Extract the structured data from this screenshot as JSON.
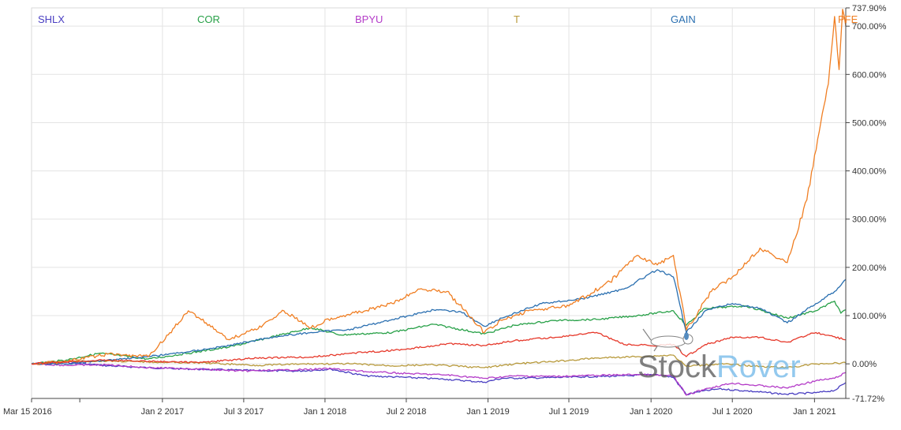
{
  "chart_data": {
    "type": "line",
    "title": "",
    "xlabel": "",
    "ylabel": "",
    "ylim": [
      -71.72,
      737.9
    ],
    "x_range": [
      "2016-03-15",
      "2021-03-12"
    ],
    "grid": true,
    "legend_position": "top",
    "y_ticks": [
      {
        "value": 737.9,
        "label": "737.90%"
      },
      {
        "value": 700,
        "label": "700.00%"
      },
      {
        "value": 600,
        "label": "600.00%"
      },
      {
        "value": 500,
        "label": "500.00%"
      },
      {
        "value": 400,
        "label": "400.00%"
      },
      {
        "value": 300,
        "label": "300.00%"
      },
      {
        "value": 200,
        "label": "200.00%"
      },
      {
        "value": 100,
        "label": "100.00%"
      },
      {
        "value": 0,
        "label": "0.00%"
      },
      {
        "value": -71.72,
        "label": "-71.72%"
      }
    ],
    "x_ticks": [
      {
        "date": "2016-03-15",
        "label": "Mar 15 2016"
      },
      {
        "date": "2017-01-02",
        "label": "Jan 2 2017"
      },
      {
        "date": "2017-07-03",
        "label": "Jul 3 2017"
      },
      {
        "date": "2018-01-01",
        "label": "Jan 1 2018"
      },
      {
        "date": "2018-07-02",
        "label": "Jul 2 2018"
      },
      {
        "date": "2019-01-01",
        "label": "Jan 1 2019"
      },
      {
        "date": "2019-07-01",
        "label": "Jul 1 2019"
      },
      {
        "date": "2020-01-01",
        "label": "Jan 1 2020"
      },
      {
        "date": "2020-07-01",
        "label": "Jul 1 2020"
      },
      {
        "date": "2021-01-01",
        "label": "Jan 1 2021"
      }
    ],
    "series": [
      {
        "name": "SHLX",
        "color": "#4a3fc2",
        "points": [
          [
            "2016-03-15",
            0
          ],
          [
            "2016-06-01",
            3
          ],
          [
            "2016-09-01",
            -4
          ],
          [
            "2016-12-01",
            -8
          ],
          [
            "2017-02-01",
            -10
          ],
          [
            "2017-05-01",
            -12
          ],
          [
            "2017-08-01",
            -14
          ],
          [
            "2017-11-01",
            -15
          ],
          [
            "2018-01-15",
            -11
          ],
          [
            "2018-04-01",
            -25
          ],
          [
            "2018-07-01",
            -28
          ],
          [
            "2018-10-01",
            -32
          ],
          [
            "2018-12-24",
            -38
          ],
          [
            "2019-02-01",
            -30
          ],
          [
            "2019-05-01",
            -29
          ],
          [
            "2019-08-01",
            -27
          ],
          [
            "2019-11-01",
            -25
          ],
          [
            "2020-01-15",
            -22
          ],
          [
            "2020-02-20",
            -28
          ],
          [
            "2020-03-20",
            -64
          ],
          [
            "2020-04-15",
            -58
          ],
          [
            "2020-06-01",
            -52
          ],
          [
            "2020-08-01",
            -56
          ],
          [
            "2020-10-30",
            -63
          ],
          [
            "2021-01-04",
            -60
          ],
          [
            "2021-02-15",
            -55
          ],
          [
            "2021-03-12",
            -39
          ]
        ]
      },
      {
        "name": "COR",
        "color": "#27a047",
        "points": [
          [
            "2016-03-15",
            0
          ],
          [
            "2016-06-01",
            8
          ],
          [
            "2016-08-15",
            22
          ],
          [
            "2016-12-01",
            10
          ],
          [
            "2017-03-01",
            22
          ],
          [
            "2017-06-01",
            35
          ],
          [
            "2017-09-01",
            55
          ],
          [
            "2017-12-01",
            75
          ],
          [
            "2018-02-05",
            60
          ],
          [
            "2018-06-01",
            65
          ],
          [
            "2018-09-01",
            82
          ],
          [
            "2018-12-24",
            62
          ],
          [
            "2019-03-01",
            80
          ],
          [
            "2019-06-01",
            90
          ],
          [
            "2019-09-01",
            92
          ],
          [
            "2019-12-01",
            100
          ],
          [
            "2020-02-20",
            110
          ],
          [
            "2020-03-20",
            80
          ],
          [
            "2020-05-01",
            115
          ],
          [
            "2020-08-01",
            120
          ],
          [
            "2020-11-01",
            95
          ],
          [
            "2021-01-04",
            110
          ],
          [
            "2021-02-15",
            130
          ],
          [
            "2021-03-01",
            105
          ],
          [
            "2021-03-12",
            112
          ]
        ]
      },
      {
        "name": "BPYU",
        "color": "#b43cc8",
        "points": [
          [
            "2016-03-15",
            0
          ],
          [
            "2016-06-01",
            -3
          ],
          [
            "2016-09-01",
            -2
          ],
          [
            "2016-12-01",
            -8
          ],
          [
            "2017-03-01",
            -10
          ],
          [
            "2017-07-01",
            -15
          ],
          [
            "2017-10-01",
            -13
          ],
          [
            "2018-01-15",
            -10
          ],
          [
            "2018-04-01",
            -16
          ],
          [
            "2018-07-01",
            -20
          ],
          [
            "2018-10-01",
            -23
          ],
          [
            "2018-12-24",
            -30
          ],
          [
            "2019-03-01",
            -25
          ],
          [
            "2019-06-01",
            -26
          ],
          [
            "2019-09-01",
            -24
          ],
          [
            "2019-12-01",
            -22
          ],
          [
            "2020-02-20",
            -25
          ],
          [
            "2020-03-20",
            -65
          ],
          [
            "2020-05-01",
            -52
          ],
          [
            "2020-07-01",
            -40
          ],
          [
            "2020-10-30",
            -50
          ],
          [
            "2021-01-04",
            -35
          ],
          [
            "2021-02-15",
            -30
          ],
          [
            "2021-03-12",
            -18
          ]
        ]
      },
      {
        "name": "T",
        "color": "#b89a3c",
        "points": [
          [
            "2016-03-15",
            0
          ],
          [
            "2016-06-01",
            5
          ],
          [
            "2016-09-01",
            6
          ],
          [
            "2016-12-01",
            4
          ],
          [
            "2017-04-01",
            2
          ],
          [
            "2017-08-01",
            -3
          ],
          [
            "2017-12-01",
            0
          ],
          [
            "2018-03-01",
            0
          ],
          [
            "2018-06-01",
            -4
          ],
          [
            "2018-09-01",
            -2
          ],
          [
            "2018-12-24",
            -8
          ],
          [
            "2019-03-01",
            0
          ],
          [
            "2019-06-01",
            5
          ],
          [
            "2019-09-01",
            12
          ],
          [
            "2019-12-01",
            15
          ],
          [
            "2020-02-20",
            18
          ],
          [
            "2020-03-20",
            -5
          ],
          [
            "2020-06-01",
            0
          ],
          [
            "2020-09-01",
            -5
          ],
          [
            "2020-11-01",
            -8
          ],
          [
            "2021-01-04",
            0
          ],
          [
            "2021-03-12",
            2
          ]
        ]
      },
      {
        "name": "GAIN",
        "color": "#2a6fb0",
        "points": [
          [
            "2016-03-15",
            0
          ],
          [
            "2016-06-01",
            0
          ],
          [
            "2016-09-01",
            8
          ],
          [
            "2016-12-01",
            15
          ],
          [
            "2017-03-01",
            25
          ],
          [
            "2017-06-01",
            38
          ],
          [
            "2017-09-01",
            55
          ],
          [
            "2017-12-01",
            65
          ],
          [
            "2018-03-01",
            72
          ],
          [
            "2018-06-01",
            92
          ],
          [
            "2018-09-01",
            112
          ],
          [
            "2018-11-01",
            108
          ],
          [
            "2018-12-24",
            78
          ],
          [
            "2019-02-01",
            95
          ],
          [
            "2019-05-01",
            125
          ],
          [
            "2019-08-01",
            135
          ],
          [
            "2019-11-01",
            155
          ],
          [
            "2020-01-15",
            195
          ],
          [
            "2020-02-20",
            180
          ],
          [
            "2020-03-20",
            65
          ],
          [
            "2020-05-01",
            110
          ],
          [
            "2020-07-01",
            125
          ],
          [
            "2020-09-01",
            115
          ],
          [
            "2020-11-01",
            85
          ],
          [
            "2021-01-04",
            125
          ],
          [
            "2021-02-15",
            150
          ],
          [
            "2021-03-12",
            175
          ]
        ]
      },
      {
        "name": "PFE",
        "color": "#f07e22",
        "points": [
          [
            "2016-03-15",
            0
          ],
          [
            "2016-06-01",
            5
          ],
          [
            "2016-09-01",
            20
          ],
          [
            "2016-12-01",
            15
          ],
          [
            "2017-01-15",
            60
          ],
          [
            "2017-03-01",
            110
          ],
          [
            "2017-04-10",
            85
          ],
          [
            "2017-06-01",
            50
          ],
          [
            "2017-08-15",
            80
          ],
          [
            "2017-10-01",
            110
          ],
          [
            "2017-12-01",
            75
          ],
          [
            "2018-01-15",
            95
          ],
          [
            "2018-04-01",
            110
          ],
          [
            "2018-06-01",
            125
          ],
          [
            "2018-08-01",
            155
          ],
          [
            "2018-10-01",
            150
          ],
          [
            "2018-12-24",
            65
          ],
          [
            "2019-02-01",
            90
          ],
          [
            "2019-04-01",
            110
          ],
          [
            "2019-07-01",
            120
          ],
          [
            "2019-10-01",
            170
          ],
          [
            "2019-12-01",
            225
          ],
          [
            "2020-01-15",
            205
          ],
          [
            "2020-02-20",
            225
          ],
          [
            "2020-03-20",
            70
          ],
          [
            "2020-05-15",
            150
          ],
          [
            "2020-07-01",
            180
          ],
          [
            "2020-09-01",
            240
          ],
          [
            "2020-11-01",
            210
          ],
          [
            "2020-12-15",
            340
          ],
          [
            "2021-01-15",
            500
          ],
          [
            "2021-02-01",
            580
          ],
          [
            "2021-02-15",
            720
          ],
          [
            "2021-02-25",
            610
          ],
          [
            "2021-03-05",
            735
          ],
          [
            "2021-03-12",
            700
          ]
        ]
      },
      {
        "name": "",
        "color": "#e6382a",
        "points": [
          [
            "2016-03-15",
            0
          ],
          [
            "2016-06-01",
            4
          ],
          [
            "2016-09-01",
            8
          ],
          [
            "2016-12-01",
            5
          ],
          [
            "2017-04-01",
            3
          ],
          [
            "2017-08-01",
            12
          ],
          [
            "2017-12-01",
            14
          ],
          [
            "2018-03-01",
            22
          ],
          [
            "2018-07-01",
            30
          ],
          [
            "2018-10-01",
            42
          ],
          [
            "2018-12-24",
            38
          ],
          [
            "2019-03-01",
            48
          ],
          [
            "2019-06-01",
            55
          ],
          [
            "2019-09-01",
            65
          ],
          [
            "2019-11-01",
            40
          ],
          [
            "2020-01-15",
            38
          ],
          [
            "2020-02-20",
            40
          ],
          [
            "2020-03-20",
            15
          ],
          [
            "2020-05-01",
            40
          ],
          [
            "2020-07-01",
            55
          ],
          [
            "2020-09-01",
            55
          ],
          [
            "2020-11-01",
            45
          ],
          [
            "2021-01-04",
            65
          ],
          [
            "2021-03-12",
            50
          ]
        ]
      }
    ]
  },
  "watermark": "StockRover"
}
